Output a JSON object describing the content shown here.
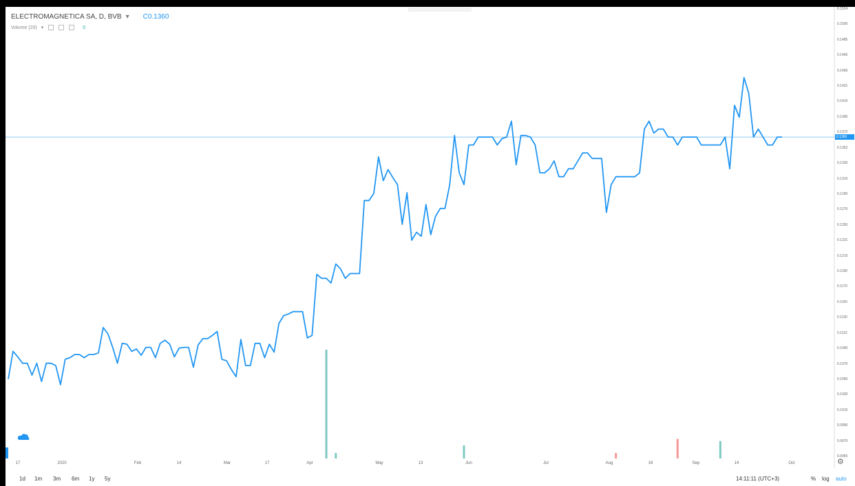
{
  "legend": {
    "symbol": "ELECTROMAGNETICA SA, D, BVB",
    "caret": "▾",
    "price": "C0.1360",
    "volume_label": "Volume (20)",
    "volume_caret": "▾",
    "volume_value": "0"
  },
  "colors": {
    "line": "#2196f3",
    "volume_up": "#26a69a",
    "volume_down": "#ef5350",
    "price_line": "#90caf9"
  },
  "chart_data": {
    "type": "line",
    "title": "ELECTROMAGNETICA SA, D, BVB",
    "xlabel": "",
    "ylabel": "",
    "ylim": [
      0.0955,
      0.1524
    ],
    "x_tick_labels": [
      "17",
      "2020",
      "Feb",
      "14",
      "Mar",
      "17",
      "Apr",
      "May",
      "13",
      "Jun",
      "Jul",
      "Aug",
      "16",
      "Sep",
      "14",
      "Oct"
    ],
    "y_tick_labels": [
      "0.1524",
      "0.1500",
      "0.1485",
      "0.1465",
      "0.1450",
      "0.1431",
      "0.1410",
      "0.1390",
      "0.1372",
      "0.1352",
      "0.1330",
      "0.1310",
      "0.1290",
      "0.1270",
      "0.1250",
      "0.1231",
      "0.1210",
      "0.1190",
      "0.1170",
      "0.1150",
      "0.1130",
      "0.1110",
      "0.1090",
      "0.1070",
      "0.1050",
      "0.1030",
      "0.1010",
      "0.0990",
      "0.0970",
      "0.0955"
    ],
    "last_price": "0.1360",
    "series": [
      {
        "values": [
          0.1055,
          0.109,
          0.1083,
          0.1075,
          0.1075,
          0.106,
          0.1075,
          0.1052,
          0.1075,
          0.1075,
          0.1072,
          0.1048,
          0.108,
          0.1082,
          0.1086,
          0.1086,
          0.1082,
          0.1086,
          0.1086,
          0.1088,
          0.112,
          0.1112,
          0.1095,
          0.1075,
          0.11,
          0.1099,
          0.109,
          0.1093,
          0.1085,
          0.1095,
          0.1095,
          0.1082,
          0.11,
          0.1104,
          0.1099,
          0.1083,
          0.1094,
          0.1095,
          0.1095,
          0.107,
          0.1098,
          0.1106,
          0.1106,
          0.111,
          0.1115,
          0.108,
          0.1078,
          0.1067,
          0.1058,
          0.1105,
          0.1072,
          0.1072,
          0.11,
          0.11,
          0.1082,
          0.1099,
          0.1089,
          0.1125,
          0.1135,
          0.1137,
          0.114,
          0.114,
          0.114,
          0.1107,
          0.111,
          0.1187,
          0.1182,
          0.1182,
          0.1176,
          0.12,
          0.1194,
          0.1182,
          0.1188,
          0.1188,
          0.1188,
          0.128,
          0.128,
          0.1289,
          0.1335,
          0.1305,
          0.1319,
          0.1309,
          0.13,
          0.125,
          0.129,
          0.123,
          0.124,
          0.1235,
          0.1275,
          0.1237,
          0.126,
          0.127,
          0.127,
          0.13,
          0.1362,
          0.1315,
          0.13,
          0.135,
          0.135,
          0.136,
          0.136,
          0.136,
          0.136,
          0.135,
          0.1358,
          0.136,
          0.138,
          0.1325,
          0.1362,
          0.1362,
          0.136,
          0.135,
          0.1315,
          0.1315,
          0.132,
          0.133,
          0.131,
          0.131,
          0.132,
          0.132,
          0.133,
          0.134,
          0.134,
          0.1333,
          0.1333,
          0.1333,
          0.1265,
          0.13,
          0.131,
          0.131,
          0.131,
          0.131,
          0.131,
          0.1315,
          0.137,
          0.138,
          0.1365,
          0.137,
          0.137,
          0.136,
          0.136,
          0.135,
          0.136,
          0.136,
          0.136,
          0.136,
          0.135,
          0.135,
          0.135,
          0.135,
          0.135,
          0.136,
          0.132,
          0.14,
          0.1385,
          0.1435,
          0.1415,
          0.136,
          0.137,
          0.136,
          0.135,
          0.135,
          0.136,
          0.136
        ]
      }
    ],
    "volume": [
      {
        "index": 67,
        "value": 1.0,
        "color": "up"
      },
      {
        "index": 69,
        "value": 0.05,
        "color": "up"
      },
      {
        "index": 96,
        "value": 0.12,
        "color": "up"
      },
      {
        "index": 128,
        "value": 0.05,
        "color": "down"
      },
      {
        "index": 141,
        "value": 0.18,
        "color": "down"
      },
      {
        "index": 150,
        "value": 0.16,
        "color": "up"
      }
    ]
  },
  "bottom": {
    "ranges": [
      "1d",
      "1m",
      "3m",
      "6m",
      "1y",
      "5y"
    ],
    "clock": "14:11:11 (UTC+3)",
    "percent": "%",
    "log": "log",
    "auto": "auto"
  }
}
